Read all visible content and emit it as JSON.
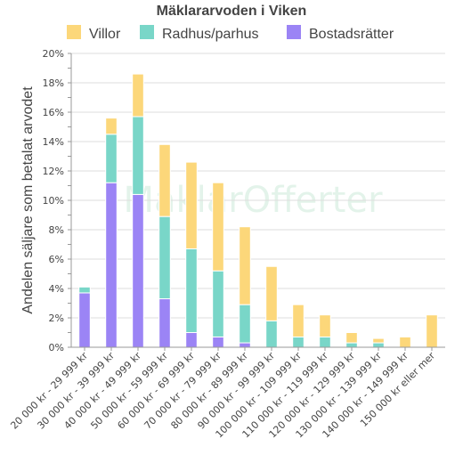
{
  "chart_data": {
    "type": "bar",
    "stacked": true,
    "title": "Mäklararvoden i Viken",
    "ylabel": "Andelen säljare som betalat arvodet",
    "xlabel": "",
    "ylim": [
      0,
      20
    ],
    "yticks": [
      0,
      2,
      4,
      6,
      8,
      10,
      12,
      14,
      16,
      18,
      20
    ],
    "ytick_suffix": "%",
    "grid": "horizontal",
    "legend_position": "top",
    "watermark": "MäklarOfferter",
    "categories": [
      "20 000 kr - 29 999 kr",
      "30 000 kr - 39 999 kr",
      "40 000 kr - 49 999 kr",
      "50 000 kr - 59 999 kr",
      "60 000 kr - 69 999 kr",
      "70 000 kr - 79 999 kr",
      "80 000 kr - 89 999 kr",
      "90 000 kr - 99 999 kr",
      "100 000 kr - 109 999 kr",
      "110 000 kr - 119 999 kr",
      "120 000 kr - 129 999 kr",
      "130 000 kr - 139 999 kr",
      "140 000 kr - 149 999 kr",
      "150 000 kr eller mer"
    ],
    "series": [
      {
        "name": "Bostadsrätter",
        "color": "#9b84f5",
        "values": [
          3.7,
          11.2,
          10.4,
          3.3,
          1.0,
          0.7,
          0.3,
          0,
          0,
          0,
          0,
          0,
          0,
          0
        ]
      },
      {
        "name": "Radhus/parhus",
        "color": "#79d6c8",
        "values": [
          0.4,
          3.3,
          5.3,
          5.6,
          5.7,
          4.5,
          2.6,
          1.8,
          0.7,
          0.7,
          0.3,
          0.3,
          0,
          0
        ]
      },
      {
        "name": "Villor",
        "color": "#fcd77a",
        "values": [
          0,
          1.1,
          2.9,
          4.9,
          5.9,
          6.0,
          5.3,
          3.7,
          2.2,
          1.5,
          0.7,
          0.3,
          0.7,
          2.2
        ]
      }
    ],
    "legend_order": [
      "Villor",
      "Radhus/parhus",
      "Bostadsrätter"
    ]
  }
}
